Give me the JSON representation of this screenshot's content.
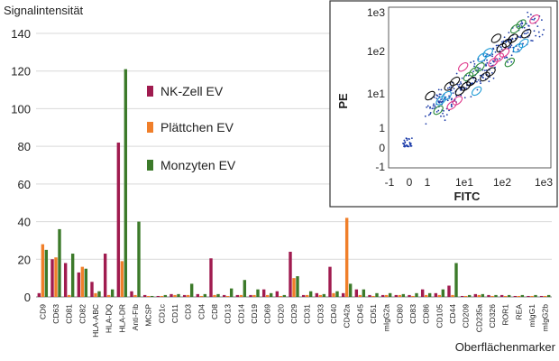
{
  "chart_data": [
    {
      "type": "bar",
      "ylabel": "Signalintensität",
      "xlabel": "Oberflächenmarker",
      "ylim": [
        0,
        140
      ],
      "yticks": [
        0,
        20,
        40,
        60,
        80,
        100,
        120,
        140
      ],
      "grid": true,
      "legend_placement": "center",
      "categories": [
        "CD9",
        "CD63",
        "CD81",
        "CD82",
        "HLA-ABC",
        "HLA-DQ",
        "HLA-DR",
        "Anti-Fib",
        "MCSP",
        "CD1c",
        "CD11",
        "CD3",
        "CD4",
        "CD8",
        "CD13",
        "CD14",
        "CD19",
        "CD69",
        "CD20",
        "CD29",
        "CD31",
        "CD33",
        "CD40",
        "CD42a",
        "CD45",
        "CD51",
        "mIgG2a",
        "CD80",
        "CD83",
        "CD86",
        "CD105",
        "CD44",
        "CD209",
        "CD235a",
        "CD326",
        "ROR1",
        "REA",
        "mIgG1",
        "mIgG2b"
      ],
      "series": [
        {
          "name": "NK-Zell EV",
          "color": "#a01b4f",
          "values": [
            2,
            20,
            18,
            13,
            8,
            23,
            82,
            3,
            1,
            0.5,
            1.5,
            1,
            1.5,
            20.5,
            1,
            1,
            1,
            4,
            3,
            24,
            1,
            2,
            16,
            2,
            4,
            1,
            1,
            1,
            1,
            4,
            2,
            6,
            0.5,
            1.5,
            1,
            1,
            0.5,
            0.5,
            0.5
          ]
        },
        {
          "name": "Plättchen EV",
          "color": "#f07f2a",
          "values": [
            28,
            21,
            1,
            16,
            2,
            1,
            19,
            1,
            0.5,
            0.5,
            1,
            1,
            0.5,
            1,
            0.5,
            1,
            1,
            1,
            0.5,
            10,
            1,
            1,
            2,
            42,
            1,
            0.5,
            1,
            1,
            0.5,
            1,
            1,
            1,
            0.5,
            1,
            0.5,
            0.5,
            0.5,
            0.5,
            0.5
          ]
        },
        {
          "name": "Monzyten EV",
          "color": "#3c7a2a",
          "values": [
            25,
            36,
            23,
            15,
            3,
            4,
            121,
            40,
            0.5,
            1,
            1.5,
            7,
            1.5,
            1.5,
            4.5,
            9,
            4,
            2,
            1,
            11,
            3,
            1.5,
            3,
            7,
            4,
            2,
            2,
            1.5,
            2,
            2,
            4,
            18,
            1,
            1.5,
            1,
            1,
            1,
            1,
            1
          ]
        }
      ]
    },
    {
      "type": "scatter",
      "xlabel": "FITC",
      "ylabel": "PE",
      "x_scale": "log",
      "y_scale": "log",
      "x_ticks": [
        "-1",
        "0",
        "1",
        "1e1",
        "1e2",
        "1e3"
      ],
      "y_ticks": [
        "1e3",
        "1e2",
        "1e1",
        "1",
        "0",
        "-1"
      ]
    }
  ]
}
